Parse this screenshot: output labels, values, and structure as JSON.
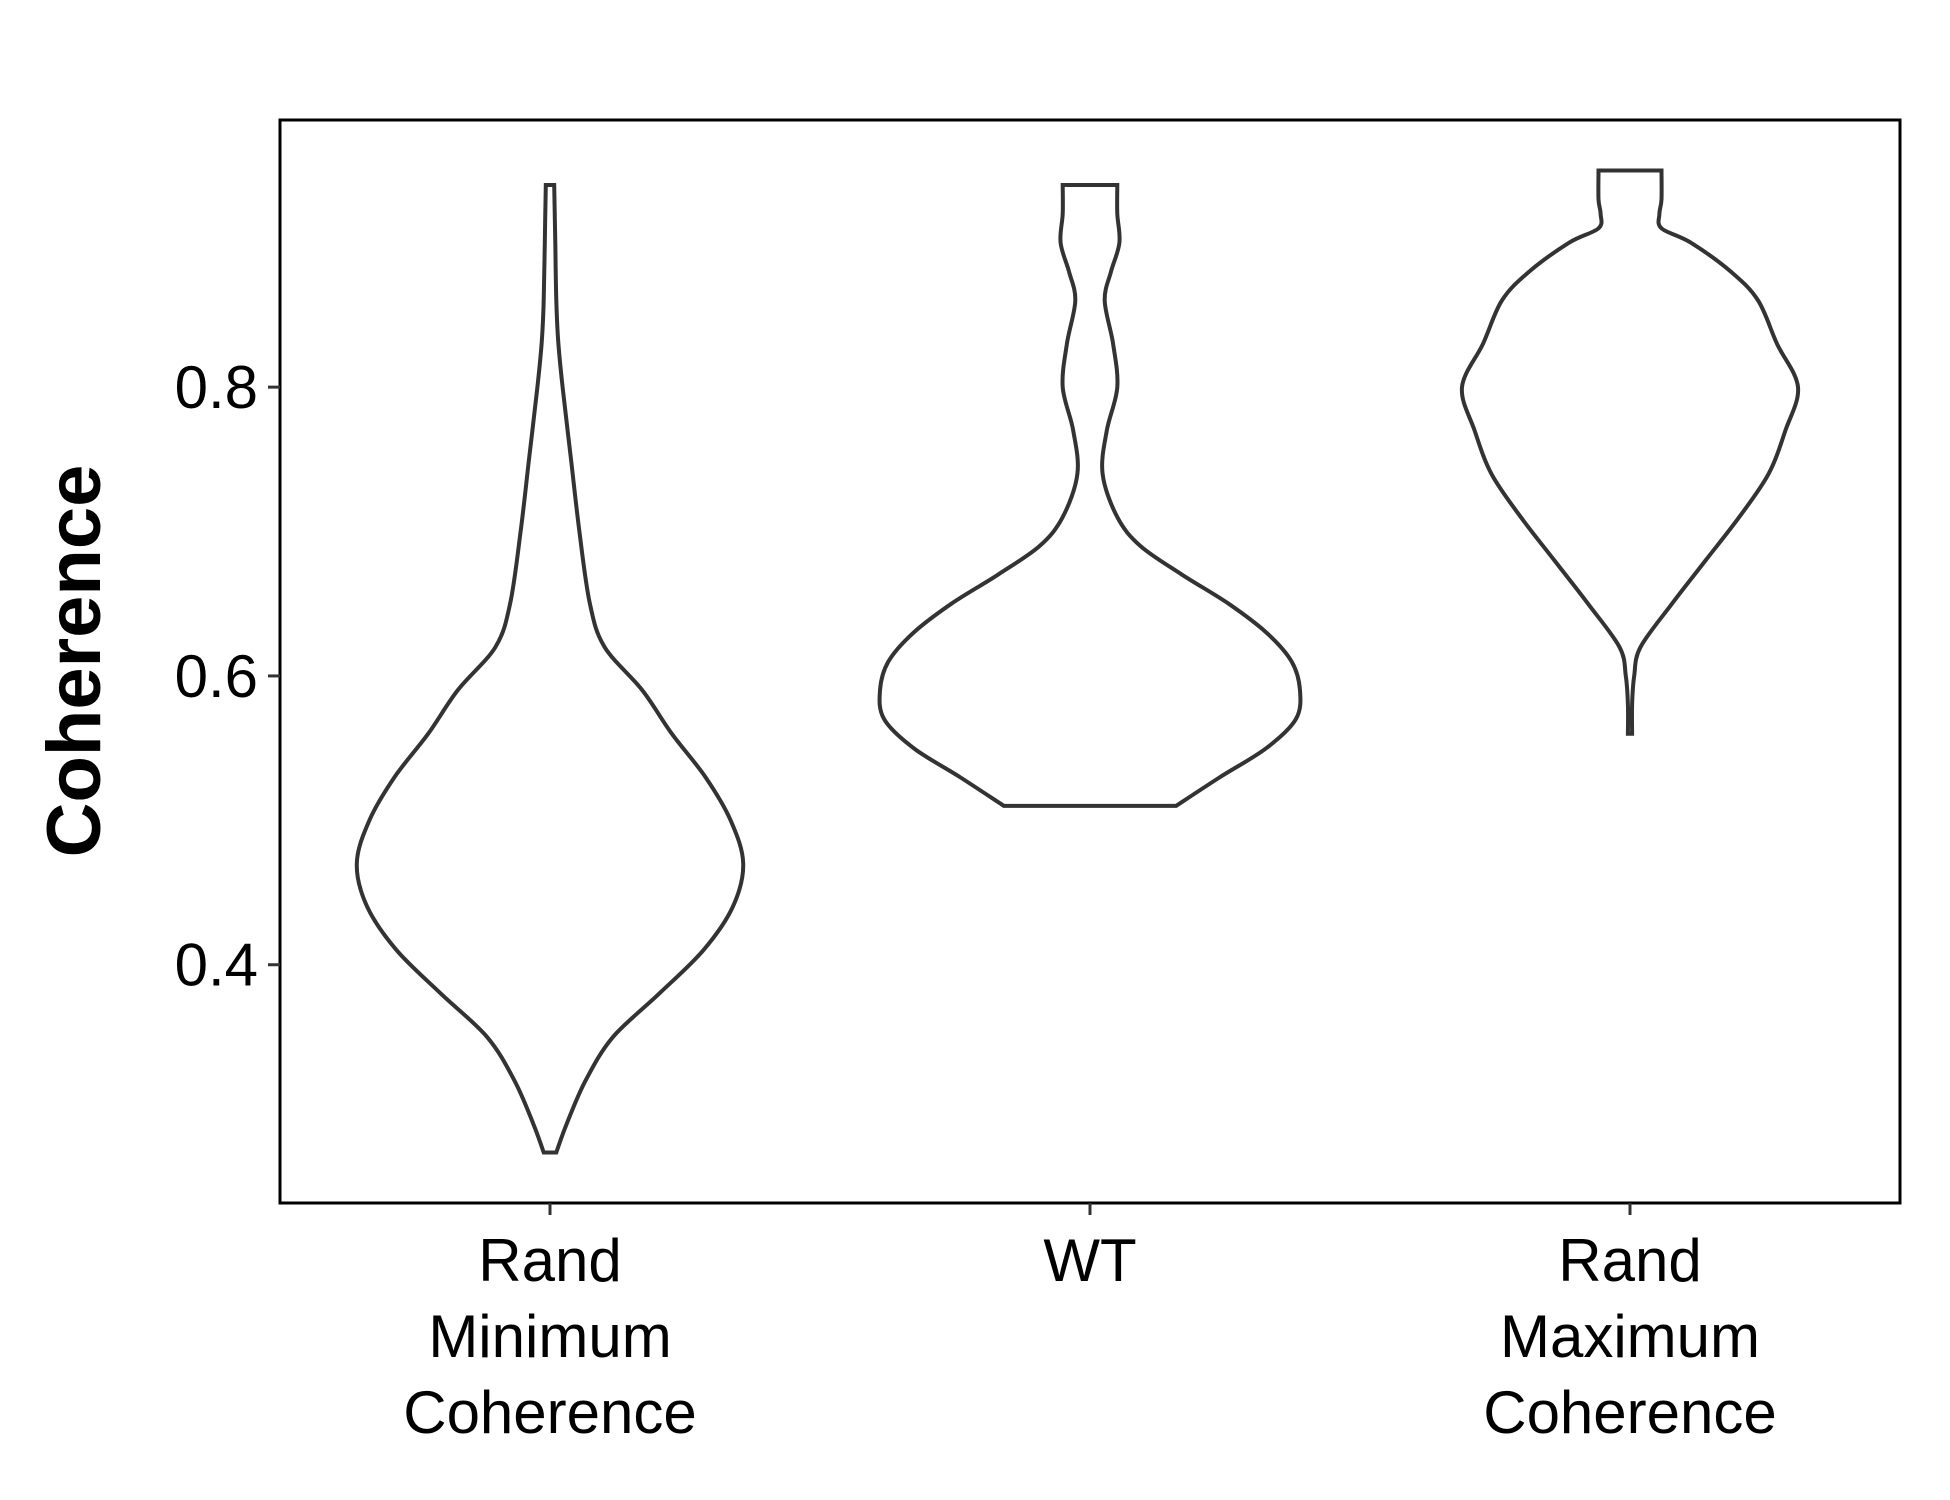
{
  "chart_data": {
    "type": "violin",
    "title": "",
    "xlabel": "",
    "ylabel": "Coherence",
    "ylim": [
      0.235,
      0.985
    ],
    "yticks": [
      0.4,
      0.6,
      0.8
    ],
    "ytick_labels": [
      "0.4",
      "0.6",
      "0.8"
    ],
    "grid": false,
    "legend": "none",
    "categories": [
      [
        "Rand",
        "Minimum",
        "Coherence"
      ],
      [
        "WT"
      ],
      [
        "Rand",
        "Maximum",
        "Coherence"
      ]
    ],
    "series": [
      {
        "min": 0.27,
        "max": 0.94,
        "density": [
          [
            0.27,
            0.03
          ],
          [
            0.29,
            0.08
          ],
          [
            0.32,
            0.17
          ],
          [
            0.35,
            0.3
          ],
          [
            0.38,
            0.52
          ],
          [
            0.41,
            0.73
          ],
          [
            0.44,
            0.87
          ],
          [
            0.47,
            0.92
          ],
          [
            0.5,
            0.86
          ],
          [
            0.53,
            0.74
          ],
          [
            0.56,
            0.58
          ],
          [
            0.59,
            0.44
          ],
          [
            0.62,
            0.26
          ],
          [
            0.65,
            0.19
          ],
          [
            0.7,
            0.14
          ],
          [
            0.75,
            0.1
          ],
          [
            0.8,
            0.06
          ],
          [
            0.83,
            0.04
          ],
          [
            0.86,
            0.03
          ],
          [
            0.9,
            0.025
          ],
          [
            0.94,
            0.02
          ]
        ]
      },
      {
        "min": 0.51,
        "max": 0.94,
        "density": [
          [
            0.51,
            0.41
          ],
          [
            0.53,
            0.62
          ],
          [
            0.55,
            0.84
          ],
          [
            0.57,
            0.98
          ],
          [
            0.59,
            1.0
          ],
          [
            0.61,
            0.96
          ],
          [
            0.63,
            0.84
          ],
          [
            0.65,
            0.66
          ],
          [
            0.67,
            0.44
          ],
          [
            0.69,
            0.24
          ],
          [
            0.71,
            0.13
          ],
          [
            0.74,
            0.06
          ],
          [
            0.77,
            0.08
          ],
          [
            0.8,
            0.13
          ],
          [
            0.83,
            0.11
          ],
          [
            0.86,
            0.07
          ],
          [
            0.88,
            0.1
          ],
          [
            0.9,
            0.14
          ],
          [
            0.92,
            0.13
          ],
          [
            0.94,
            0.13
          ]
        ]
      },
      {
        "min": 0.56,
        "max": 0.95,
        "density": [
          [
            0.56,
            0.01
          ],
          [
            0.58,
            0.01
          ],
          [
            0.6,
            0.02
          ],
          [
            0.62,
            0.05
          ],
          [
            0.65,
            0.2
          ],
          [
            0.68,
            0.36
          ],
          [
            0.71,
            0.52
          ],
          [
            0.74,
            0.66
          ],
          [
            0.77,
            0.74
          ],
          [
            0.8,
            0.8
          ],
          [
            0.83,
            0.7
          ],
          [
            0.86,
            0.61
          ],
          [
            0.88,
            0.48
          ],
          [
            0.9,
            0.29
          ],
          [
            0.91,
            0.15
          ],
          [
            0.92,
            0.14
          ],
          [
            0.93,
            0.15
          ],
          [
            0.95,
            0.15
          ]
        ]
      }
    ]
  }
}
